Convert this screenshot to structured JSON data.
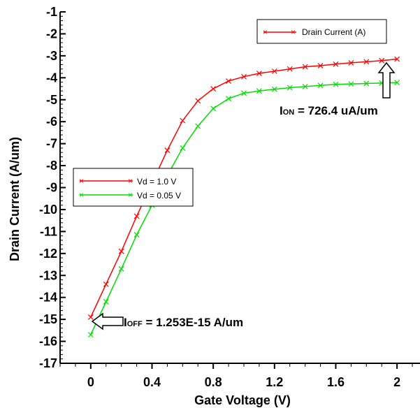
{
  "chart_data": {
    "type": "line",
    "xlabel": "Gate Voltage (V)",
    "ylabel": "Drain Current (A/um)",
    "xlim": [
      -0.2,
      2.15
    ],
    "ylim": [
      -17,
      -1
    ],
    "x_ticks": [
      "0",
      "0.4",
      "0.8",
      "1.2",
      "1.6",
      "2"
    ],
    "x_tick_values": [
      0,
      0.4,
      0.8,
      1.2,
      1.6,
      2.0
    ],
    "y_ticks": [
      "-1",
      "-2",
      "-3",
      "-4",
      "-5",
      "-6",
      "-7",
      "-8",
      "-9",
      "-10",
      "-11",
      "-12",
      "-13",
      "-14",
      "-15",
      "-16",
      "-17"
    ],
    "y_tick_values": [
      -1,
      -2,
      -3,
      -4,
      -5,
      -6,
      -7,
      -8,
      -9,
      -10,
      -11,
      -12,
      -13,
      -14,
      -15,
      -16,
      -17
    ],
    "plot_legend": "Drain Current (A)",
    "legend_position": "top-right",
    "series_legend_position": "middle-left",
    "x": [
      0,
      0.1,
      0.2,
      0.3,
      0.4,
      0.5,
      0.6,
      0.7,
      0.8,
      0.9,
      1.0,
      1.1,
      1.2,
      1.3,
      1.4,
      1.5,
      1.6,
      1.7,
      1.8,
      1.9,
      2.0
    ],
    "series": [
      {
        "name": "Vd = 1.0 V",
        "color": "#ff0000",
        "values": [
          -14.9,
          -13.4,
          -11.9,
          -10.3,
          -8.8,
          -7.3,
          -5.95,
          -5.05,
          -4.5,
          -4.15,
          -3.95,
          -3.8,
          -3.7,
          -3.6,
          -3.5,
          -3.45,
          -3.38,
          -3.32,
          -3.27,
          -3.22,
          -3.15
        ]
      },
      {
        "name": "Vd = 0.05 V",
        "color": "#00dd00",
        "values": [
          -15.7,
          -14.2,
          -12.7,
          -11.15,
          -9.8,
          -8.45,
          -7.2,
          -6.2,
          -5.4,
          -4.95,
          -4.7,
          -4.6,
          -4.52,
          -4.45,
          -4.4,
          -4.35,
          -4.3,
          -4.28,
          -4.26,
          -4.24,
          -4.22
        ]
      }
    ],
    "annotations": {
      "ion_main": "I",
      "ion_sub": "ON",
      "ion_value": " = 726.4 uA/um",
      "ioff_main": "I",
      "ioff_sub": "OFF",
      "ioff_value": " = 1.253E-15 A/um"
    }
  }
}
